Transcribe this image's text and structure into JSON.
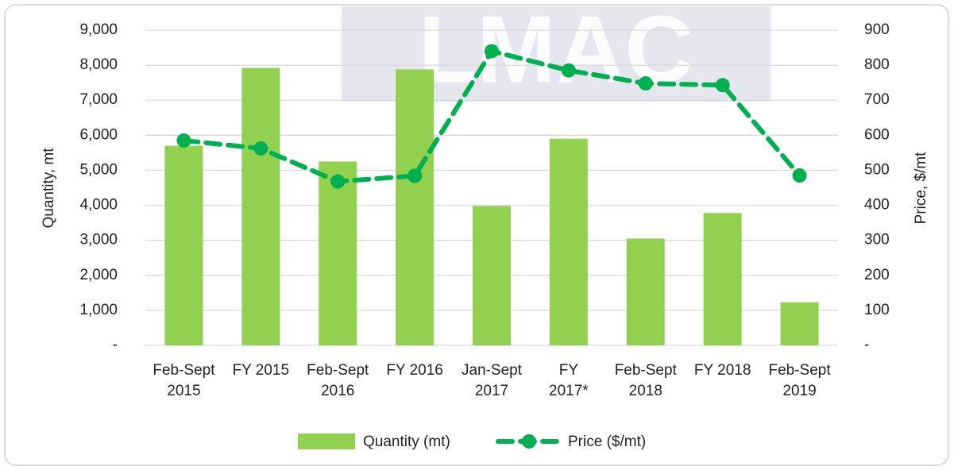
{
  "chart_data": {
    "type": "bar_line",
    "watermark": "LMAC",
    "categories": [
      "Feb-Sept\n2015",
      "FY 2015",
      "Feb-Sept\n2016",
      "FY 2016",
      "Jan-Sept\n2017",
      "FY\n2017*",
      "Feb-Sept\n2018",
      "FY 2018",
      "Feb-Sept\n2019"
    ],
    "y_label": "Quantity, mt",
    "y2_label": "Price, $/mt",
    "series": [
      {
        "name": "Quantity (mt)",
        "type": "bar",
        "color": "#92d050",
        "values": [
          5700,
          7920,
          5250,
          7880,
          3980,
          5900,
          3050,
          3780,
          1230
        ]
      },
      {
        "name": "Price ($/mt)",
        "type": "line",
        "axis": "y2",
        "color": "#00b050",
        "values": [
          585,
          562,
          468,
          484,
          840,
          785,
          748,
          743,
          485
        ]
      }
    ],
    "ylim": [
      0,
      9000
    ],
    "yticks": [
      {
        "value": 0,
        "label": "-"
      },
      {
        "value": 1000,
        "label": "1,000"
      },
      {
        "value": 2000,
        "label": "2,000"
      },
      {
        "value": 3000,
        "label": "3,000"
      },
      {
        "value": 4000,
        "label": "4,000"
      },
      {
        "value": 5000,
        "label": "5,000"
      },
      {
        "value": 6000,
        "label": "6,000"
      },
      {
        "value": 7000,
        "label": "7,000"
      },
      {
        "value": 8000,
        "label": "8,000"
      },
      {
        "value": 9000,
        "label": "9,000"
      }
    ],
    "y2lim": [
      0,
      900
    ],
    "y2ticks": [
      {
        "value": 0,
        "label": "-"
      },
      100,
      200,
      300,
      400,
      500,
      600,
      700,
      800,
      900
    ],
    "grid": true,
    "legend": "bottom"
  }
}
